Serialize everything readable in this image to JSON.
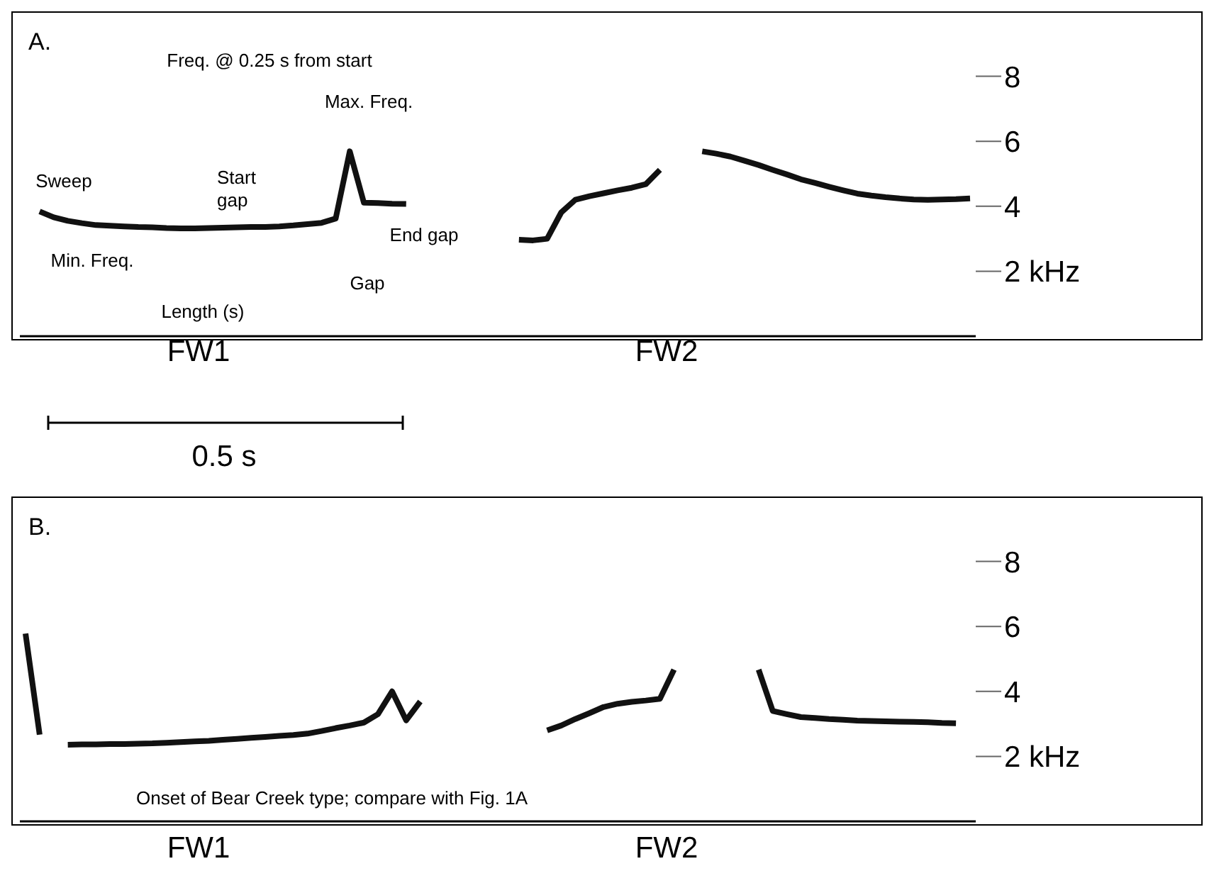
{
  "chart_data": [
    {
      "type": "line",
      "title": "A.",
      "categories": [
        null,
        null,
        null,
        null,
        null,
        null,
        null,
        null,
        null,
        null,
        null,
        null,
        null,
        null,
        null,
        null,
        null,
        null,
        null,
        null,
        null,
        null,
        null,
        null,
        null,
        null,
        null,
        null,
        null,
        null,
        null,
        null,
        null,
        null,
        null,
        null,
        null,
        null,
        null,
        null,
        null,
        null,
        null,
        null,
        null,
        null,
        null,
        null,
        null,
        null,
        null,
        null,
        null,
        null,
        null,
        null,
        null,
        null,
        null,
        null,
        null,
        null,
        null,
        null,
        null,
        null,
        null,
        null
      ],
      "ylim": [
        0,
        10
      ],
      "yticks": [
        {
          "value": 2,
          "label": "2 kHz"
        },
        4,
        6,
        8
      ],
      "tick_labels": "y",
      "marker": "none",
      "line_style": "solid",
      "series": [
        {
          "color": "#111111",
          "values": [
            null,
            3.84,
            3.66,
            3.55,
            3.48,
            3.42,
            3.4,
            3.38,
            3.36,
            3.35,
            3.33,
            3.32,
            3.32,
            3.33,
            3.34,
            3.35,
            3.36,
            3.36,
            3.38,
            3.41,
            3.45,
            3.49,
            3.62,
            5.69,
            4.11,
            4.1,
            4.08,
            4.07,
            null,
            null,
            null,
            null,
            null,
            null,
            null,
            2.97,
            2.95,
            3.0,
            3.81,
            4.2,
            4.31,
            4.4,
            4.49,
            4.57,
            4.68,
            5.12,
            null,
            null,
            5.69,
            5.62,
            5.53,
            5.4,
            5.27,
            5.12,
            4.98,
            4.83,
            4.72,
            4.6,
            4.49,
            4.39,
            4.33,
            4.28,
            4.24,
            4.21,
            4.2,
            4.21,
            4.22,
            4.24
          ]
        }
      ],
      "annotations": [
        "Sweep",
        "Min. Freq.",
        "Freq. @ 0.25 s from start",
        "Start gap",
        "Max. Freq.",
        "End gap",
        "Gap",
        "Length (s)",
        "FW1",
        "FW2",
        "0.5 s"
      ]
    },
    {
      "type": "line",
      "title": "B.",
      "categories": [
        null,
        null,
        null,
        null,
        null,
        null,
        null,
        null,
        null,
        null,
        null,
        null,
        null,
        null,
        null,
        null,
        null,
        null,
        null,
        null,
        null,
        null,
        null,
        null,
        null,
        null,
        null,
        null,
        null,
        null,
        null,
        null,
        null,
        null,
        null,
        null,
        null,
        null,
        null,
        null,
        null,
        null,
        null,
        null,
        null,
        null,
        null,
        null,
        null,
        null,
        null,
        null,
        null,
        null,
        null,
        null,
        null,
        null,
        null,
        null,
        null,
        null,
        null,
        null,
        null,
        null,
        null,
        null
      ],
      "ylim": [
        0,
        10
      ],
      "yticks": [
        {
          "value": 2,
          "label": "2 kHz"
        },
        4,
        6,
        8
      ],
      "tick_labels": "y",
      "marker": "none",
      "line_style": "solid",
      "series": [
        {
          "color": "#111111",
          "values": [
            5.78,
            2.67,
            null,
            2.36,
            2.37,
            2.37,
            2.38,
            2.38,
            2.39,
            2.4,
            2.42,
            2.44,
            2.46,
            2.48,
            2.51,
            2.54,
            2.57,
            2.6,
            2.63,
            2.66,
            2.7,
            2.78,
            2.87,
            2.95,
            3.04,
            3.3,
            4.0,
            3.11,
            3.69,
            null,
            null,
            null,
            null,
            null,
            null,
            null,
            null,
            2.8,
            2.95,
            3.15,
            3.33,
            3.52,
            3.62,
            3.68,
            3.72,
            3.77,
            4.67,
            null,
            null,
            null,
            null,
            null,
            4.67,
            3.4,
            3.3,
            3.21,
            3.18,
            3.15,
            3.13,
            3.1,
            3.09,
            3.08,
            3.07,
            3.06,
            3.05,
            3.03,
            3.02,
            null
          ]
        }
      ],
      "annotations": [
        "Onset of Bear Creek type; compare with Fig. 1A",
        "FW1",
        "FW2"
      ]
    }
  ]
}
